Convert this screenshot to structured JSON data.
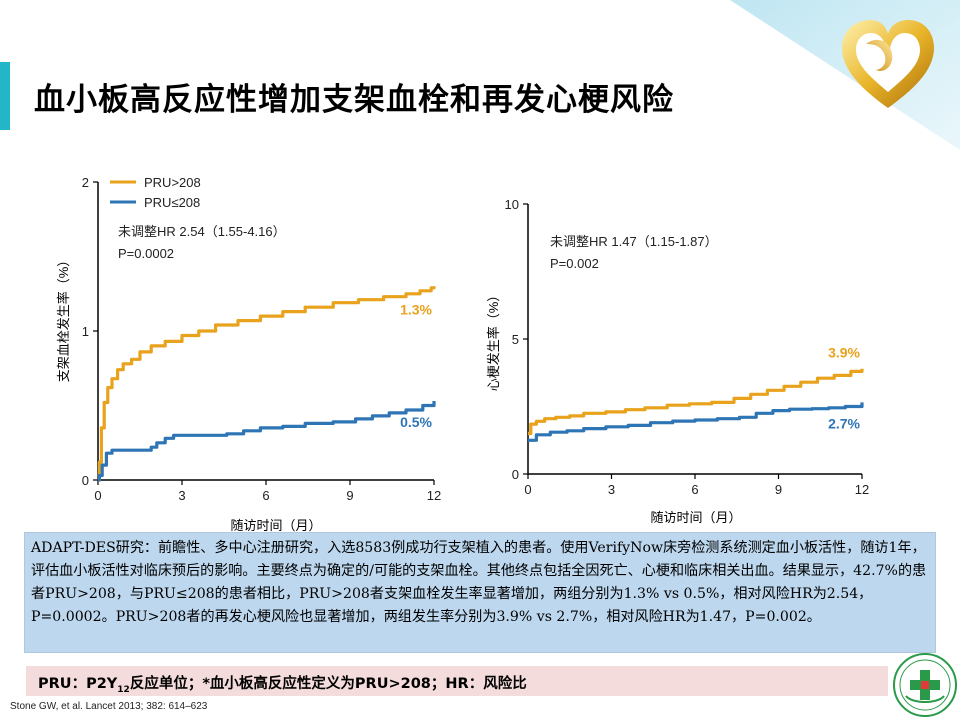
{
  "slide": {
    "title": "血小板高反应性增加支架血栓和再发心梗风险",
    "description": "ADAPT-DES研究：前瞻性、多中心注册研究，入选8583例成功行支架植入的患者。使用VerifyNow床旁检测系统测定血小板活性，随访1年，评估血小板活性对临床预后的影响。主要终点为确定的/可能的支架血栓。其他终点包括全因死亡、心梗和临床相关出血。结果显示，42.7%的患者PRU>208，与PRU≤208的患者相比，PRU>208者支架血栓发生率显著增加，两组分别为1.3% vs 0.5%，相对风险HR为2.54，P=0.0002。PRU>208者的再发心梗风险也显著增加，两组发生率分别为3.9% vs 2.7%，相对风险HR为1.47，P=0.002。",
    "note_prefix": "PRU：P2Y",
    "note_sub": "12",
    "note_suffix": "反应单位；*血小板高反应性定义为PRU>208；HR：风险比",
    "citation": "Stone GW, et al. Lancet 2013; 382: 614–623"
  },
  "colors": {
    "series_high": "#e8a21c",
    "series_low": "#2e75b6",
    "accent_bar": "#23b6c9",
    "desc_bg": "#bdd7ee",
    "note_bg": "#f4dcdc"
  },
  "chart_data": [
    {
      "type": "line",
      "ylabel": "支架血栓发生率（%）",
      "xlabel": "随访时间（月）",
      "xlim": [
        0,
        12
      ],
      "ylim": [
        0,
        2
      ],
      "xticks": [
        0,
        3,
        6,
        9,
        12
      ],
      "yticks": [
        0,
        1,
        2
      ],
      "legend": [
        "PRU>208",
        "PRU≤208"
      ],
      "annotation": [
        "未调整HR 2.54（1.55-4.16）",
        "P=0.0002"
      ],
      "series": [
        {
          "name": "PRU>208",
          "color": "#e8a21c",
          "end_label": "1.3%",
          "points": [
            [
              0,
              0
            ],
            [
              0.05,
              0.12
            ],
            [
              0.12,
              0.35
            ],
            [
              0.22,
              0.52
            ],
            [
              0.35,
              0.62
            ],
            [
              0.5,
              0.68
            ],
            [
              0.7,
              0.74
            ],
            [
              0.9,
              0.78
            ],
            [
              1.2,
              0.81
            ],
            [
              1.5,
              0.86
            ],
            [
              1.9,
              0.9
            ],
            [
              2.4,
              0.93
            ],
            [
              3,
              0.97
            ],
            [
              3.6,
              1.0
            ],
            [
              4.2,
              1.04
            ],
            [
              5,
              1.07
            ],
            [
              5.8,
              1.1
            ],
            [
              6.6,
              1.13
            ],
            [
              7.4,
              1.16
            ],
            [
              8.4,
              1.19
            ],
            [
              9.3,
              1.21
            ],
            [
              10.2,
              1.23
            ],
            [
              11,
              1.25
            ],
            [
              11.5,
              1.27
            ],
            [
              11.9,
              1.29
            ],
            [
              12,
              1.3
            ]
          ]
        },
        {
          "name": "PRU≤208",
          "color": "#2e75b6",
          "end_label": "0.5%",
          "points": [
            [
              0,
              0
            ],
            [
              0.05,
              0.03
            ],
            [
              0.15,
              0.1
            ],
            [
              0.3,
              0.18
            ],
            [
              0.5,
              0.2
            ],
            [
              1.6,
              0.2
            ],
            [
              1.9,
              0.22
            ],
            [
              2.1,
              0.25
            ],
            [
              2.4,
              0.28
            ],
            [
              2.7,
              0.3
            ],
            [
              3.6,
              0.3
            ],
            [
              4.6,
              0.31
            ],
            [
              5.2,
              0.33
            ],
            [
              5.8,
              0.35
            ],
            [
              6.6,
              0.36
            ],
            [
              7.4,
              0.38
            ],
            [
              8.4,
              0.39
            ],
            [
              9.2,
              0.41
            ],
            [
              9.8,
              0.43
            ],
            [
              10.4,
              0.45
            ],
            [
              11,
              0.47
            ],
            [
              11.6,
              0.5
            ],
            [
              12,
              0.53
            ]
          ]
        }
      ]
    },
    {
      "type": "line",
      "ylabel": "心梗发生率（%）",
      "xlabel": "随访时间（月）",
      "xlim": [
        0,
        12
      ],
      "ylim": [
        0,
        10
      ],
      "xticks": [
        0,
        3,
        6,
        9,
        12
      ],
      "yticks": [
        0,
        5,
        10
      ],
      "annotation": [
        "未调整HR 1.47（1.15-1.87）",
        "P=0.002"
      ],
      "series": [
        {
          "name": "PRU>208",
          "color": "#e8a21c",
          "end_label": "3.9%",
          "points": [
            [
              0,
              1.5
            ],
            [
              0.1,
              1.85
            ],
            [
              0.3,
              1.95
            ],
            [
              0.6,
              2.05
            ],
            [
              1,
              2.1
            ],
            [
              1.5,
              2.15
            ],
            [
              2,
              2.25
            ],
            [
              2.8,
              2.3
            ],
            [
              3.5,
              2.38
            ],
            [
              4.2,
              2.45
            ],
            [
              5,
              2.55
            ],
            [
              5.8,
              2.6
            ],
            [
              6.6,
              2.65
            ],
            [
              7.4,
              2.8
            ],
            [
              8,
              2.95
            ],
            [
              8.6,
              3.1
            ],
            [
              9.2,
              3.25
            ],
            [
              9.8,
              3.4
            ],
            [
              10.4,
              3.55
            ],
            [
              11,
              3.65
            ],
            [
              11.6,
              3.8
            ],
            [
              12,
              3.9
            ]
          ]
        },
        {
          "name": "PRU≤208",
          "color": "#2e75b6",
          "end_label": "2.7%",
          "points": [
            [
              0,
              1.25
            ],
            [
              0.3,
              1.45
            ],
            [
              0.8,
              1.55
            ],
            [
              1.4,
              1.6
            ],
            [
              2,
              1.68
            ],
            [
              2.8,
              1.75
            ],
            [
              3.6,
              1.8
            ],
            [
              4.4,
              1.9
            ],
            [
              5.2,
              1.96
            ],
            [
              6,
              2.0
            ],
            [
              6.8,
              2.05
            ],
            [
              7.6,
              2.1
            ],
            [
              8.2,
              2.25
            ],
            [
              8.8,
              2.35
            ],
            [
              9.4,
              2.4
            ],
            [
              10.2,
              2.42
            ],
            [
              10.8,
              2.45
            ],
            [
              11.4,
              2.5
            ],
            [
              12,
              2.65
            ]
          ]
        }
      ]
    }
  ]
}
